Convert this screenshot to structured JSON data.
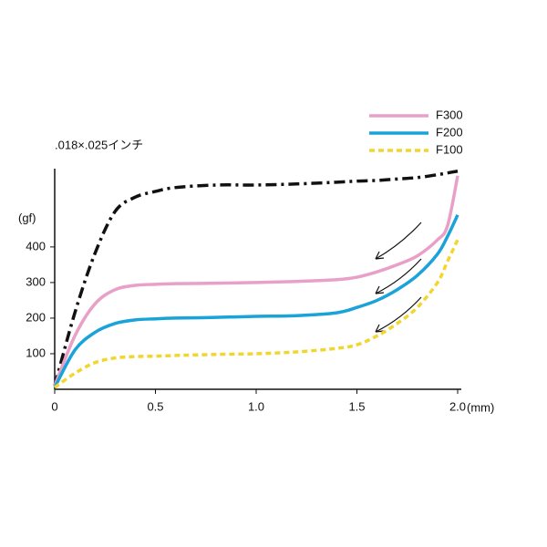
{
  "chart_data": {
    "type": "line",
    "title": ".018×.025インチ",
    "y_label": "(gf)",
    "x_label": "(mm)",
    "x": [
      0,
      0.1,
      0.2,
      0.3,
      0.4,
      0.5,
      0.6,
      0.8,
      1.0,
      1.2,
      1.4,
      1.5,
      1.6,
      1.7,
      1.8,
      1.9,
      1.95,
      2.0
    ],
    "series": [
      {
        "color": "#111111",
        "dash": "dashdot",
        "values": [
          10,
          215,
          382,
          500,
          540,
          556,
          567,
          574,
          574,
          577,
          582,
          585,
          587,
          591,
          595,
          603,
          608,
          613
        ]
      },
      {
        "name": "F300",
        "color": "#e8a0c8",
        "dash": "solid",
        "values": [
          10,
          150,
          240,
          280,
          292,
          295,
          297,
          298,
          300,
          303,
          308,
          315,
          330,
          350,
          375,
          420,
          460,
          600
        ]
      },
      {
        "name": "F200",
        "color": "#1aa3d8",
        "dash": "solid",
        "values": [
          5,
          110,
          160,
          185,
          195,
          198,
          200,
          202,
          205,
          207,
          215,
          230,
          250,
          280,
          320,
          380,
          430,
          490
        ]
      },
      {
        "name": "F100",
        "color": "#f2d630",
        "dash": "dashed",
        "values": [
          5,
          45,
          75,
          88,
          92,
          93,
          95,
          98,
          100,
          105,
          115,
          125,
          150,
          185,
          230,
          300,
          360,
          420
        ]
      }
    ],
    "xlim": [
      0,
      2.0
    ],
    "xticks": [
      0,
      0.5,
      {
        "value": 1.0,
        "label": "1.0"
      },
      1.5,
      {
        "value": 2.0,
        "label": "2.0"
      }
    ],
    "ylim": [
      0,
      620
    ],
    "yticks": [
      100,
      200,
      300,
      400
    ],
    "grid": false,
    "legend": "top-right"
  }
}
